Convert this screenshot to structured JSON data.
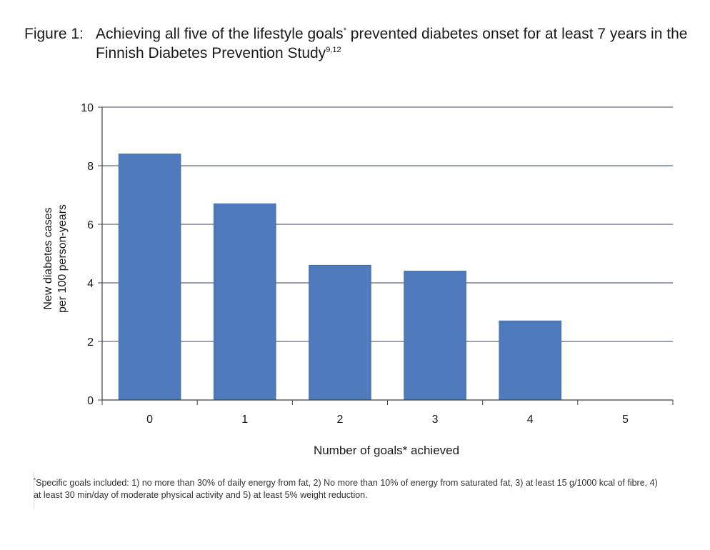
{
  "caption": {
    "number": "Figure 1:",
    "title_part1": "Achieving all five of the lifestyle goals",
    "title_sup": "*",
    "title_part2": " prevented diabetes onset for at least 7 years in the Finnish Diabetes Prevention Study",
    "title_refs": "9,12"
  },
  "chart_data": {
    "type": "bar",
    "categories": [
      "0",
      "1",
      "2",
      "3",
      "4",
      "5"
    ],
    "values": [
      8.4,
      6.7,
      4.6,
      4.4,
      2.7,
      0
    ],
    "ylim": [
      0,
      10
    ],
    "yticks": [
      "0",
      "2",
      "4",
      "6",
      "8",
      "10"
    ],
    "ylabel_line1": "New diabetes cases",
    "ylabel_line2": "per 100 person-years",
    "xlabel": "Number of goals* achieved",
    "grid": true,
    "colors": {
      "bar": "#4f7bbd",
      "bar_edge": "#3f6aa8",
      "grid": "#5a6a80",
      "axis": "#404040"
    }
  },
  "footnote": {
    "mark": "*",
    "text": "Specific goals included: 1) no more than 30% of daily energy from fat, 2) No more than 10% of energy from saturated fat, 3) at least 15 g/1000 kcal of fibre, 4) at least 30 min/day of moderate physical activity and 5) at least 5% weight reduction."
  }
}
